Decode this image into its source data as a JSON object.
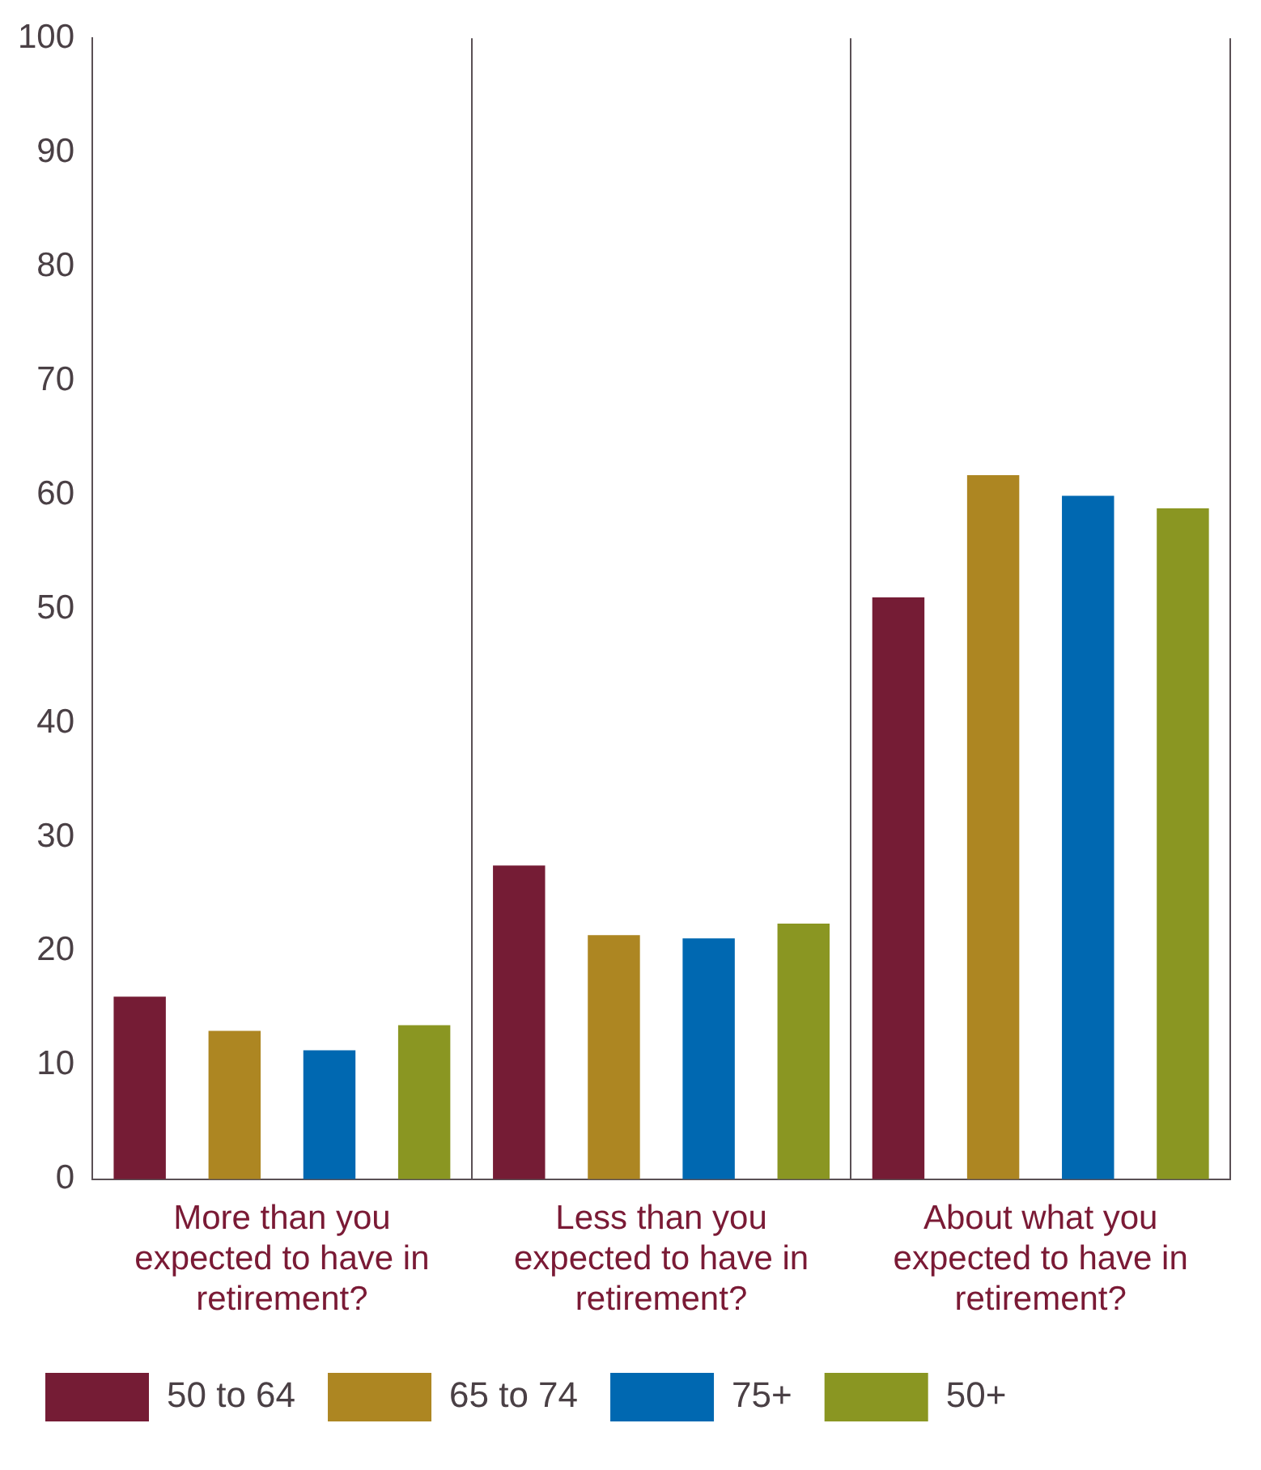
{
  "chart_data": {
    "type": "bar",
    "categories": [
      "More than you expected to have in retirement?",
      "Less than you expected to have in retirement?",
      "About what you expected to have in retirement?"
    ],
    "series": [
      {
        "name": "50 to 64",
        "color": "#751c35",
        "values": [
          16,
          27.5,
          51
        ]
      },
      {
        "name": "65 to 74",
        "color": "#ad8622",
        "values": [
          13,
          21.4,
          61.7
        ]
      },
      {
        "name": "75+",
        "color": "#0068b1",
        "values": [
          11.3,
          21.1,
          59.9
        ]
      },
      {
        "name": "50+",
        "color": "#8a9622",
        "values": [
          13.5,
          22.4,
          58.8
        ]
      }
    ],
    "ylim": [
      0,
      100
    ],
    "yticks": [
      0,
      10,
      20,
      30,
      40,
      50,
      60,
      70,
      80,
      90,
      100
    ],
    "grid": false,
    "legend": "bottom"
  }
}
